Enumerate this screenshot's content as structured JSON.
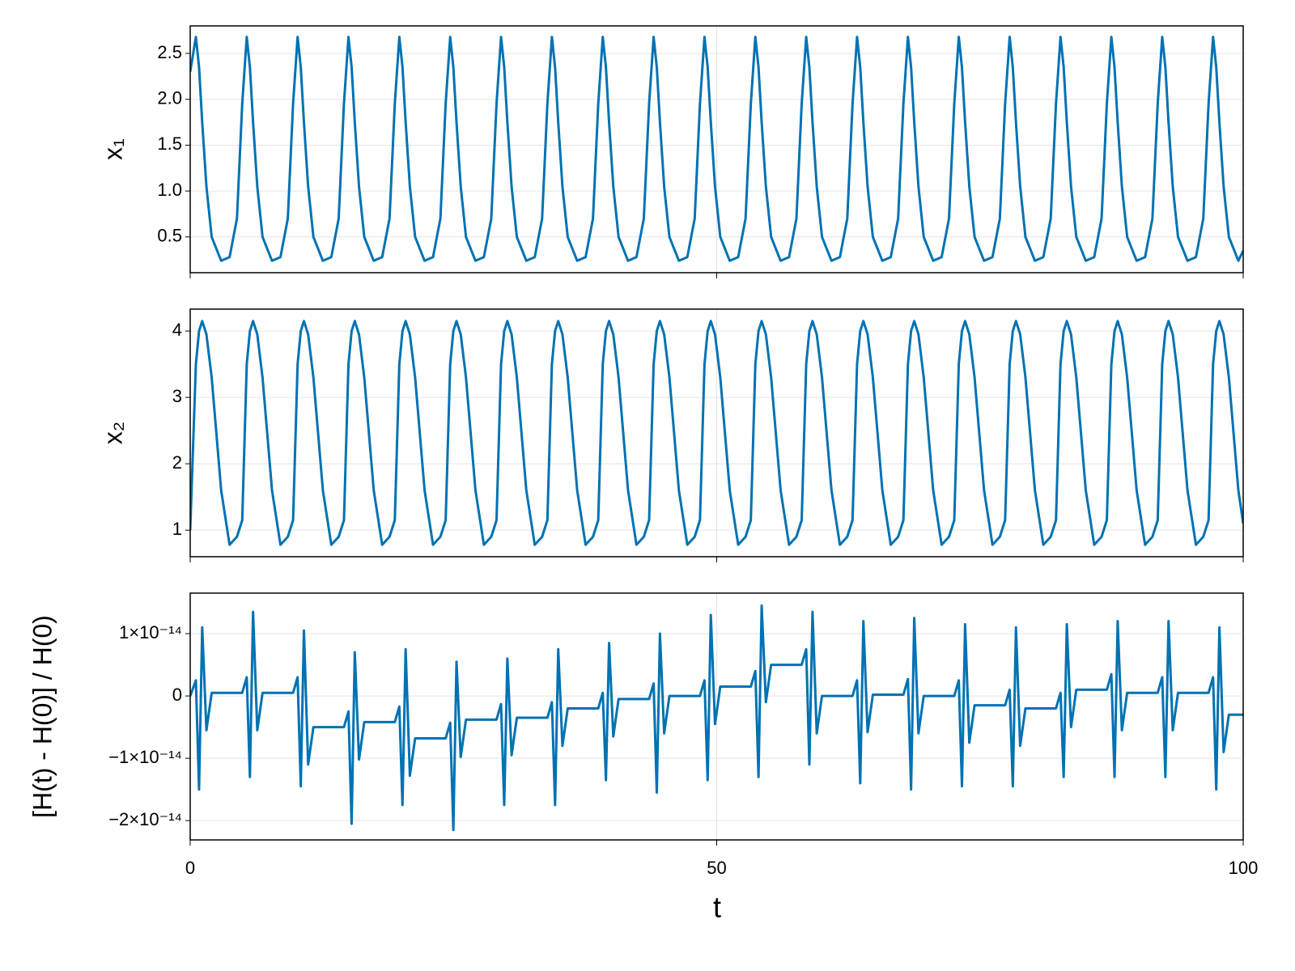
{
  "chart_data": {
    "type": "line",
    "xlabel": "t",
    "color": "#0072b2",
    "grid": true,
    "xlim": [
      0,
      100
    ],
    "xticks": [
      0,
      50,
      100
    ],
    "x": [
      0,
      0.54,
      0.84,
      1.14,
      1.54,
      2.04,
      2.94,
      3.74,
      4.44,
      4.94,
      5.37,
      5.67,
      5.97,
      6.37,
      6.87,
      7.77,
      8.57,
      9.27,
      9.77,
      10.2,
      10.5,
      10.8,
      11.2,
      11.7,
      12.6,
      13.4,
      14.1,
      14.6,
      15.03,
      15.33,
      15.63,
      16.03,
      16.53,
      17.43,
      18.23,
      18.93,
      19.43,
      19.86,
      20.16,
      20.46,
      20.86,
      21.36,
      22.26,
      23.06,
      23.76,
      24.26,
      24.69,
      24.99,
      25.29,
      25.69,
      26.19,
      27.09,
      27.89,
      28.59,
      29.09,
      29.52,
      29.82,
      30.12,
      30.52,
      31.02,
      31.92,
      32.72,
      33.42,
      33.92,
      34.35,
      34.65,
      34.95,
      35.35,
      35.85,
      36.75,
      37.55,
      38.25,
      38.75,
      39.18,
      39.48,
      39.78,
      40.18,
      40.68,
      41.58,
      42.38,
      43.08,
      43.58,
      44.01,
      44.31,
      44.61,
      45.01,
      45.51,
      46.41,
      47.21,
      47.91,
      48.41,
      48.84,
      49.14,
      49.44,
      49.84,
      50.34,
      51.24,
      52.04,
      52.74,
      53.24,
      53.67,
      53.97,
      54.27,
      54.67,
      55.17,
      56.07,
      56.87,
      57.57,
      58.07,
      58.5,
      58.8,
      59.1,
      59.5,
      60,
      60.9,
      61.7,
      62.4,
      62.9,
      63.33,
      63.63,
      63.93,
      64.33,
      64.83,
      65.73,
      66.53,
      67.23,
      67.73,
      68.16,
      68.46,
      68.76,
      69.16,
      69.66,
      70.56,
      71.36,
      72.06,
      72.56,
      72.99,
      73.29,
      73.59,
      73.99,
      74.49,
      75.39,
      76.19,
      76.89,
      77.39,
      77.82,
      78.12,
      78.42,
      78.82,
      79.32,
      80.22,
      81.02,
      81.72,
      82.22,
      82.65,
      82.95,
      83.25,
      83.65,
      84.15,
      85.05,
      85.85,
      86.55,
      87.05,
      87.48,
      87.78,
      88.08,
      88.48,
      88.98,
      89.88,
      90.68,
      91.38,
      91.88,
      92.31,
      92.61,
      92.91,
      93.31,
      93.81,
      94.71,
      95.51,
      96.21,
      96.71,
      97.14,
      97.44,
      97.74,
      98.14,
      98.64,
      99.54,
      100
    ],
    "panels": [
      {
        "ylabel": "x₁",
        "ylim": [
          0.11,
          2.8
        ],
        "yticks": [
          0.5,
          {
            "value": 1,
            "label": "1.0"
          },
          1.5,
          {
            "value": 2,
            "label": "2.0"
          },
          2.5
        ],
        "values": [
          2.3,
          2.68,
          2.35,
          1.75,
          1.05,
          0.5,
          0.24,
          0.28,
          0.7,
          1.95,
          2.68,
          2.35,
          1.75,
          1.05,
          0.5,
          0.24,
          0.28,
          0.7,
          1.95,
          2.68,
          2.35,
          1.75,
          1.05,
          0.5,
          0.24,
          0.28,
          0.7,
          1.95,
          2.68,
          2.35,
          1.75,
          1.05,
          0.5,
          0.24,
          0.28,
          0.7,
          1.95,
          2.68,
          2.35,
          1.75,
          1.05,
          0.5,
          0.24,
          0.28,
          0.7,
          1.95,
          2.68,
          2.35,
          1.75,
          1.05,
          0.5,
          0.24,
          0.28,
          0.7,
          1.95,
          2.68,
          2.35,
          1.75,
          1.05,
          0.5,
          0.24,
          0.28,
          0.7,
          1.95,
          2.68,
          2.35,
          1.75,
          1.05,
          0.5,
          0.24,
          0.28,
          0.7,
          1.95,
          2.68,
          2.35,
          1.75,
          1.05,
          0.5,
          0.24,
          0.28,
          0.7,
          1.95,
          2.68,
          2.35,
          1.75,
          1.05,
          0.5,
          0.24,
          0.28,
          0.7,
          1.95,
          2.68,
          2.35,
          1.75,
          1.05,
          0.5,
          0.24,
          0.28,
          0.7,
          1.95,
          2.68,
          2.35,
          1.75,
          1.05,
          0.5,
          0.24,
          0.28,
          0.7,
          1.95,
          2.68,
          2.35,
          1.75,
          1.05,
          0.5,
          0.24,
          0.28,
          0.7,
          1.95,
          2.68,
          2.35,
          1.75,
          1.05,
          0.5,
          0.24,
          0.28,
          0.7,
          1.95,
          2.68,
          2.35,
          1.75,
          1.05,
          0.5,
          0.24,
          0.28,
          0.7,
          1.95,
          2.68,
          2.35,
          1.75,
          1.05,
          0.5,
          0.24,
          0.28,
          0.7,
          1.95,
          2.68,
          2.35,
          1.75,
          1.05,
          0.5,
          0.24,
          0.28,
          0.7,
          1.95,
          2.68,
          2.35,
          1.75,
          1.05,
          0.5,
          0.24,
          0.28,
          0.7,
          1.95,
          2.68,
          2.35,
          1.75,
          1.05,
          0.5,
          0.24,
          0.28,
          0.7,
          1.95,
          2.68,
          2.35,
          1.75,
          1.05,
          0.5,
          0.24,
          0.28,
          0.7,
          1.95,
          2.68,
          2.35,
          1.75,
          1.05,
          0.5,
          0.24,
          0.35
        ]
      },
      {
        "ylabel": "x₂",
        "ylim": [
          0.6,
          4.33
        ],
        "yticks": [
          1,
          2,
          3,
          4
        ],
        "values": [
          1,
          3.5,
          4.0,
          4.15,
          3.95,
          3.3,
          1.6,
          0.78,
          0.9,
          1.15,
          3.5,
          4.0,
          4.15,
          3.95,
          3.3,
          1.6,
          0.78,
          0.9,
          1.15,
          3.5,
          4.0,
          4.15,
          3.95,
          3.3,
          1.6,
          0.78,
          0.9,
          1.15,
          3.5,
          4.0,
          4.15,
          3.95,
          3.3,
          1.6,
          0.78,
          0.9,
          1.15,
          3.5,
          4.0,
          4.15,
          3.95,
          3.3,
          1.6,
          0.78,
          0.9,
          1.15,
          3.5,
          4.0,
          4.15,
          3.95,
          3.3,
          1.6,
          0.78,
          0.9,
          1.15,
          3.5,
          4.0,
          4.15,
          3.95,
          3.3,
          1.6,
          0.78,
          0.9,
          1.15,
          3.5,
          4.0,
          4.15,
          3.95,
          3.3,
          1.6,
          0.78,
          0.9,
          1.15,
          3.5,
          4.0,
          4.15,
          3.95,
          3.3,
          1.6,
          0.78,
          0.9,
          1.15,
          3.5,
          4.0,
          4.15,
          3.95,
          3.3,
          1.6,
          0.78,
          0.9,
          1.15,
          3.5,
          4.0,
          4.15,
          3.95,
          3.3,
          1.6,
          0.78,
          0.9,
          1.15,
          3.5,
          4.0,
          4.15,
          3.95,
          3.3,
          1.6,
          0.78,
          0.9,
          1.15,
          3.5,
          4.0,
          4.15,
          3.95,
          3.3,
          1.6,
          0.78,
          0.9,
          1.15,
          3.5,
          4.0,
          4.15,
          3.95,
          3.3,
          1.6,
          0.78,
          0.9,
          1.15,
          3.5,
          4.0,
          4.15,
          3.95,
          3.3,
          1.6,
          0.78,
          0.9,
          1.15,
          3.5,
          4.0,
          4.15,
          3.95,
          3.3,
          1.6,
          0.78,
          0.9,
          1.15,
          3.5,
          4.0,
          4.15,
          3.95,
          3.3,
          1.6,
          0.78,
          0.9,
          1.15,
          3.5,
          4.0,
          4.15,
          3.95,
          3.3,
          1.6,
          0.78,
          0.9,
          1.15,
          3.5,
          4.0,
          4.15,
          3.95,
          3.3,
          1.6,
          0.78,
          0.9,
          1.15,
          3.5,
          4.0,
          4.15,
          3.95,
          3.3,
          1.6,
          0.78,
          0.9,
          1.15,
          3.5,
          4.0,
          4.15,
          3.95,
          3.3,
          1.6,
          1.1
        ]
      },
      {
        "ylabel": "[H(t) - H(0)] / H(0)",
        "ylim": [
          -2.31e-14,
          1.65e-14
        ],
        "yticks": [
          {
            "value": -2e-14,
            "label": "−2×10⁻¹⁴"
          },
          {
            "value": -1e-14,
            "label": "−1×10⁻¹⁴"
          },
          0,
          {
            "value": 1e-14,
            "label": "1×10⁻¹⁴"
          }
        ],
        "values": [
          0,
          2.5e-15,
          -1.5e-14,
          1.1e-14,
          -5.5e-15,
          5e-16,
          5e-16,
          5e-16,
          5e-16,
          5e-16,
          3e-15,
          -1.3e-14,
          1.35e-14,
          -5.5e-15,
          5e-16,
          5e-16,
          5e-16,
          5e-16,
          5e-16,
          3e-15,
          -1.45e-14,
          1.05e-14,
          -1.1e-14,
          -5e-15,
          -5e-15,
          -5e-15,
          -5e-15,
          -5e-15,
          -2.5e-15,
          -2.05e-14,
          7e-15,
          -1.02e-14,
          -4.2e-15,
          -4.2e-15,
          -4.2e-15,
          -4.2e-15,
          -4.2e-15,
          -1.7e-15,
          -1.75e-14,
          7.5e-15,
          -1.28e-14,
          -6.8e-15,
          -6.8e-15,
          -6.8e-15,
          -6.8e-15,
          -6.8e-15,
          -4.3e-15,
          -2.15e-14,
          5.5e-15,
          -9.8e-15,
          -3.8e-15,
          -3.8e-15,
          -3.8e-15,
          -3.8e-15,
          -3.8e-15,
          -1.3e-15,
          -1.75e-14,
          6e-15,
          -9.5e-15,
          -3.5e-15,
          -3.5e-15,
          -3.5e-15,
          -3.5e-15,
          -3.5e-15,
          -1e-15,
          -1.75e-14,
          7.5e-15,
          -8e-15,
          -2e-15,
          -2e-15,
          -2e-15,
          -2e-15,
          -2e-15,
          5e-16,
          -1.35e-14,
          8.5e-15,
          -6.5e-15,
          -5e-16,
          -5e-16,
          -5e-16,
          -5e-16,
          -5e-16,
          2e-15,
          -1.55e-14,
          1e-14,
          -6e-15,
          0,
          0,
          0,
          0,
          0,
          2.5e-15,
          -1.35e-14,
          1.3e-14,
          -4.5e-15,
          1.5e-15,
          1.5e-15,
          1.5e-15,
          1.5e-15,
          1.5e-15,
          4e-15,
          -1.3e-14,
          1.45e-14,
          -1e-15,
          5e-15,
          5e-15,
          5e-15,
          5e-15,
          5e-15,
          7.5e-15,
          -1.1e-14,
          1.35e-14,
          -6e-15,
          0,
          0,
          0,
          0,
          0,
          2.5e-15,
          -1.4e-14,
          1.2e-14,
          -5.8e-15,
          2e-16,
          2e-16,
          2e-16,
          2e-16,
          2e-16,
          2.7e-15,
          -1.5e-14,
          1.25e-14,
          -6e-15,
          0,
          0,
          0,
          0,
          0,
          2.5e-15,
          -1.45e-14,
          1.15e-14,
          -7.5e-15,
          -1.5e-15,
          -1.5e-15,
          -1.5e-15,
          -1.5e-15,
          -1.5e-15,
          1e-15,
          -1.45e-14,
          1.1e-14,
          -8e-15,
          -2e-15,
          -2e-15,
          -2e-15,
          -2e-15,
          -2e-15,
          5e-16,
          -1.3e-14,
          1.15e-14,
          -5e-15,
          1e-15,
          1e-15,
          1e-15,
          1e-15,
          1e-15,
          3.5e-15,
          -1.3e-14,
          1.2e-14,
          -5.5e-15,
          5e-16,
          5e-16,
          5e-16,
          5e-16,
          5e-16,
          3e-15,
          -1.3e-14,
          1.2e-14,
          -5.5e-15,
          5e-16,
          5e-16,
          5e-16,
          5e-16,
          5e-16,
          3e-15,
          -1.5e-14,
          1.1e-14,
          -9e-15,
          -3e-15,
          -3e-15,
          -3e-15
        ]
      }
    ]
  }
}
